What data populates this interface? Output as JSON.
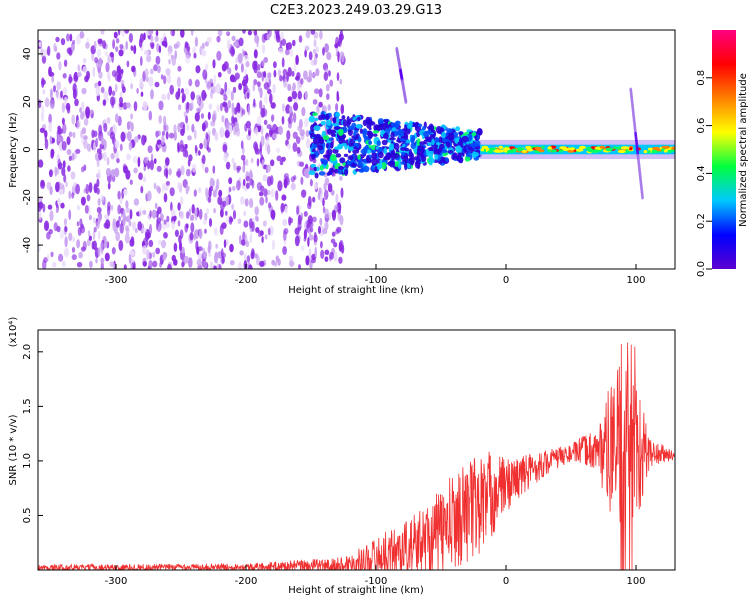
{
  "title": "C2E3.2023.249.03.29.G13",
  "chart_data": [
    {
      "type": "heatmap",
      "title": "C2E3.2023.249.03.29.G13",
      "xlabel": "Height of straight line (km)",
      "ylabel": "Frequency (Hz)",
      "xlim": [
        -360,
        130
      ],
      "ylim": [
        -50,
        50
      ],
      "x_ticks": [
        -300,
        -200,
        -100,
        0,
        100
      ],
      "y_ticks": [
        -40,
        -20,
        0,
        20,
        40
      ],
      "grid": false,
      "colorbar": {
        "label": "Normalized spectral amplitude",
        "range": [
          0,
          1
        ],
        "ticks": [
          0.0,
          0.2,
          0.4,
          0.6,
          0.8
        ],
        "colormap": [
          "#5a00d0",
          "#0000ff",
          "#00c8ff",
          "#00ff40",
          "#ffff00",
          "#ff8000",
          "#ff0000",
          "#ff0080"
        ]
      },
      "regions": [
        {
          "name": "scattered noise",
          "x": [
            -360,
            -125
          ],
          "y": [
            -50,
            50
          ],
          "amplitude": 0.12
        },
        {
          "name": "broadband core",
          "x": [
            -150,
            -20
          ],
          "y": [
            -12,
            16
          ],
          "amplitude": 0.35
        },
        {
          "name": "narrow carrier",
          "x": [
            -20,
            130
          ],
          "y": [
            -2,
            2
          ],
          "amplitude": 0.7
        },
        {
          "name": "streak near -80 km",
          "x": [
            -84,
            -77
          ],
          "y": [
            20,
            42
          ],
          "amplitude": 0.2
        },
        {
          "name": "streak near 100 km",
          "x": [
            96,
            105
          ],
          "y": [
            -20,
            25
          ],
          "amplitude": 0.25
        }
      ]
    },
    {
      "type": "line",
      "xlabel": "Height of straight line (km)",
      "ylabel": "SNR (10 * v/v)",
      "y_multiplier": "(x10⁴)",
      "xlim": [
        -360,
        130
      ],
      "ylim": [
        0,
        2.2
      ],
      "x_ticks": [
        -300,
        -200,
        -100,
        0,
        100
      ],
      "y_ticks": [
        0.5,
        1.0,
        1.5,
        2.0
      ],
      "y_tick_labels": [
        "0.5",
        "1.0",
        "1.5",
        "2.0"
      ],
      "color": "#f03030",
      "grid": false,
      "envelope": {
        "x": [
          -360,
          -200,
          -130,
          -110,
          -90,
          -70,
          -50,
          -40,
          -30,
          -20,
          -10,
          0,
          10,
          20,
          30,
          40,
          50,
          60,
          70,
          80,
          90,
          100,
          110,
          120,
          130
        ],
        "y": [
          0.02,
          0.03,
          0.04,
          0.09,
          0.15,
          0.22,
          0.35,
          0.45,
          0.55,
          0.6,
          0.7,
          0.78,
          0.85,
          0.92,
          0.98,
          1.03,
          1.07,
          1.1,
          1.1,
          1.1,
          1.15,
          1.08,
          1.07,
          1.06,
          1.05
        ]
      },
      "noise_amplitude": {
        "x": [
          -360,
          -200,
          -120,
          -100,
          -70,
          -40,
          -20,
          -10,
          0,
          10,
          30,
          50,
          70,
          80,
          90,
          100,
          110,
          130
        ],
        "y": [
          0.03,
          0.03,
          0.08,
          0.18,
          0.3,
          0.45,
          0.5,
          0.4,
          0.25,
          0.2,
          0.12,
          0.08,
          0.2,
          0.6,
          0.8,
          0.8,
          0.15,
          0.04
        ]
      }
    }
  ]
}
